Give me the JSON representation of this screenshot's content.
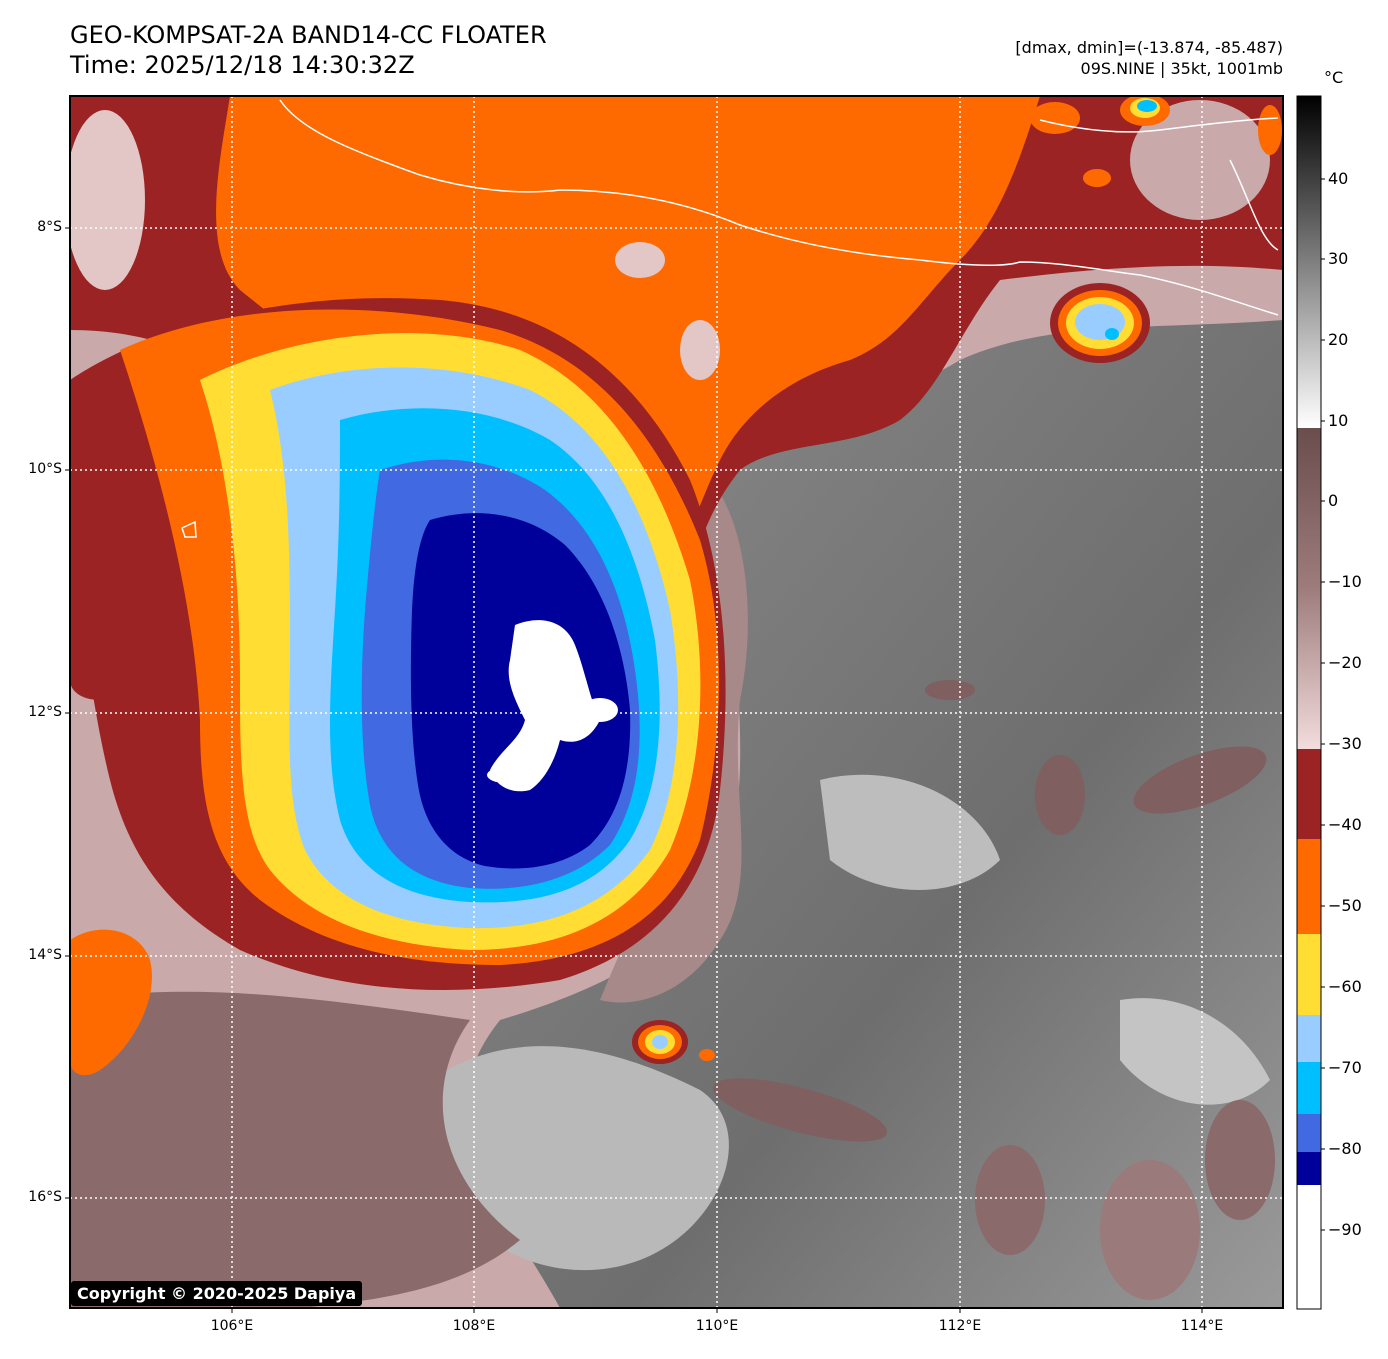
{
  "header": {
    "title_line1": "GEO-KOMPSAT-2A BAND14-CC FLOATER",
    "title_line2": "Time: 2025/12/18 14:30:32Z",
    "range_text": "[dmax, dmin]=(-13.874, -85.487)",
    "storm_text": "09S.NINE | 35kt, 1001mb"
  },
  "map": {
    "lon_labels": [
      "106°E",
      "108°E",
      "110°E",
      "112°E",
      "114°E"
    ],
    "lat_labels": [
      "8°S",
      "10°S",
      "12°S",
      "14°S",
      "16°S"
    ]
  },
  "colorbar": {
    "unit": "°C",
    "ticks": [
      "40",
      "30",
      "20",
      "10",
      "0",
      "−10",
      "−20",
      "−30",
      "−40",
      "−50",
      "−60",
      "−70",
      "−80",
      "−90"
    ],
    "colors": {
      "white_cold": "#ffffff",
      "navy": "#00009a",
      "royal_blue": "#4169e1",
      "deep_sky": "#00bfff",
      "light_blue": "#99ccff",
      "yellow": "#ffdd33",
      "orange": "#ff6a00",
      "brown_red": "#9b2323",
      "pink": "#f0d8d8",
      "mauve": "#7a5a5a"
    }
  },
  "footer": {
    "copyright": "Copyright © 2020-2025 Dapiya"
  }
}
